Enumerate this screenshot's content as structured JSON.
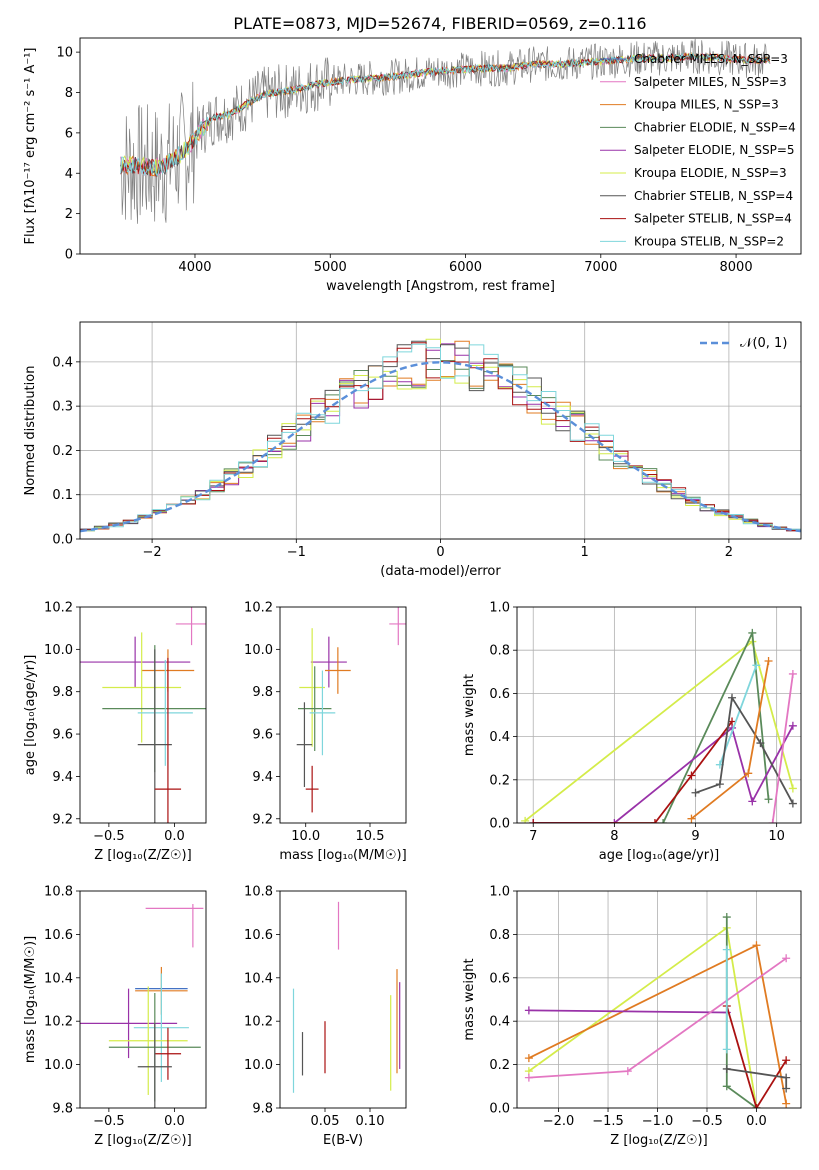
{
  "title": "PLATE=0873, MJD=52674, FIBERID=0569, z=0.116",
  "colors": {
    "chabrier_miles": "#4472c4",
    "salpeter_miles": "#e377c2",
    "kroupa_miles": "#e07b22",
    "chabrier_elodie": "#5a8a5a",
    "salpeter_elodie": "#9932a8",
    "kroupa_elodie": "#d4ec4a",
    "chabrier_stelib": "#555555",
    "salpeter_stelib": "#aa1111",
    "kroupa_stelib": "#7fd6dc",
    "data": "#808080",
    "normal": "#5b8fd9",
    "grid": "#b0b0b0"
  },
  "chart_data": [
    {
      "type": "line",
      "panel": "spectrum",
      "xlabel": "wavelength [Angstrom, rest frame]",
      "ylabel": "Flux [fλ10⁻¹⁷ erg cm⁻² s⁻¹ A⁻¹]",
      "xlim": [
        3150,
        8480
      ],
      "ylim": [
        0,
        10.7
      ],
      "xticks": [
        4000,
        5000,
        6000,
        7000,
        8000
      ],
      "yticks": [
        0,
        2,
        4,
        6,
        8,
        10
      ],
      "grid": false,
      "legend_position": "upper-right",
      "legend": [
        "Chabrier MILES, N_SSP=3",
        "Salpeter MILES, N_SSP=3",
        "Kroupa MILES, N_SSP=3",
        "Chabrier ELODIE, N_SSP=4",
        "Salpeter ELODIE, N_SSP=5",
        "Kroupa ELODIE, N_SSP=3",
        "Chabrier STELIB, N_SSP=4",
        "Salpeter STELIB, N_SSP=4",
        "Kroupa STELIB, N_SSP=2"
      ],
      "continuum": {
        "x": [
          3450,
          3550,
          3650,
          3750,
          3850,
          3950,
          4050,
          4150,
          4250,
          4350,
          4500,
          4700,
          4900,
          5100,
          5300,
          5500,
          5700,
          5900,
          6100,
          6300,
          6500,
          6700,
          6900,
          7100,
          7300,
          7500,
          7700,
          7900,
          8100,
          8250
        ],
        "y": [
          4.4,
          4.4,
          4.3,
          4.3,
          4.7,
          5.3,
          6.2,
          6.8,
          6.9,
          7.3,
          7.9,
          8.1,
          8.4,
          8.6,
          8.7,
          8.8,
          9.0,
          9.1,
          9.2,
          9.2,
          9.4,
          9.4,
          9.5,
          9.6,
          9.7,
          9.7,
          9.8,
          9.7,
          9.6,
          9.6
        ]
      }
    },
    {
      "type": "bar",
      "panel": "residual-histogram",
      "xlabel": "(data-model)/error",
      "ylabel": "Normed distribution",
      "xlim": [
        -2.5,
        2.5
      ],
      "ylim": [
        0,
        0.49
      ],
      "xticks": [
        -2,
        -1,
        0,
        1,
        2
      ],
      "yticks": [
        0.0,
        0.1,
        0.2,
        0.3,
        0.4
      ],
      "grid": true,
      "legend_position": "upper-right",
      "legend": [
        "𝒩(0, 1)"
      ],
      "bin_width": 0.1
    },
    {
      "type": "scatter",
      "panel": "age-vs-Z",
      "xlabel": "Z [log₁₀(Z/Z☉)]",
      "ylabel": "age  [log₁₀(age/yr)]",
      "xlim": [
        -0.72,
        0.24
      ],
      "ylim": [
        9.18,
        10.2
      ],
      "xticks": [
        -0.5,
        0.0
      ],
      "yticks": [
        9.2,
        9.4,
        9.6,
        9.8,
        10.0,
        10.2
      ],
      "points": [
        {
          "series": "salpeter_miles",
          "x": 0.13,
          "xerr": 0.12,
          "y": 10.12,
          "yerr": 0.1
        },
        {
          "series": "salpeter_elodie",
          "x": -0.3,
          "xerr": 0.42,
          "y": 9.94,
          "yerr": 0.12
        },
        {
          "series": "kroupa_miles",
          "x": -0.05,
          "xerr": 0.2,
          "y": 9.9,
          "yerr": 0.1
        },
        {
          "series": "kroupa_elodie",
          "x": -0.25,
          "xerr": 0.3,
          "y": 9.82,
          "yerr": 0.26
        },
        {
          "series": "chabrier_elodie",
          "x": -0.15,
          "xerr": 0.4,
          "y": 9.72,
          "yerr": 0.3
        },
        {
          "series": "kroupa_stelib",
          "x": -0.07,
          "xerr": 0.21,
          "y": 9.7,
          "yerr": 0.25
        },
        {
          "series": "chabrier_stelib",
          "x": -0.15,
          "xerr": 0.13,
          "y": 9.55,
          "yerr": 0.45
        },
        {
          "series": "salpeter_stelib",
          "x": -0.05,
          "xerr": 0.1,
          "y": 9.34,
          "yerr": 0.62
        }
      ]
    },
    {
      "type": "scatter",
      "panel": "age-vs-mass",
      "xlabel": "mass [log₁₀(M/M☉)]",
      "ylabel": "",
      "xlim": [
        9.8,
        10.78
      ],
      "ylim": [
        9.18,
        10.2
      ],
      "xticks": [
        10.0,
        10.5
      ],
      "yticks": [
        9.2,
        9.4,
        9.6,
        9.8,
        10.0,
        10.2
      ],
      "points": [
        {
          "series": "salpeter_miles",
          "x": 10.72,
          "xerr": 0.07,
          "y": 10.12,
          "yerr": 0.1
        },
        {
          "series": "salpeter_elodie",
          "x": 10.18,
          "xerr": 0.14,
          "y": 9.94,
          "yerr": 0.12
        },
        {
          "series": "kroupa_miles",
          "x": 10.25,
          "xerr": 0.1,
          "y": 9.9,
          "yerr": 0.11
        },
        {
          "series": "kroupa_elodie",
          "x": 10.05,
          "xerr": 0.1,
          "y": 9.82,
          "yerr": 0.28
        },
        {
          "series": "chabrier_elodie",
          "x": 10.07,
          "xerr": 0.13,
          "y": 9.72,
          "yerr": 0.2
        },
        {
          "series": "kroupa_stelib",
          "x": 10.13,
          "xerr": 0.1,
          "y": 9.7,
          "yerr": 0.2
        },
        {
          "series": "chabrier_stelib",
          "x": 9.99,
          "xerr": 0.06,
          "y": 9.55,
          "yerr": 0.2
        },
        {
          "series": "salpeter_stelib",
          "x": 10.05,
          "xerr": 0.05,
          "y": 9.34,
          "yerr": 0.11
        }
      ]
    },
    {
      "type": "line",
      "panel": "mass-weight-vs-age",
      "xlabel": "age  [log₁₀(age/yr)]",
      "ylabel": "mass weight",
      "xlim": [
        6.8,
        10.3
      ],
      "ylim": [
        0,
        1
      ],
      "xticks": [
        7,
        8,
        9,
        10
      ],
      "yticks": [
        0.0,
        0.2,
        0.4,
        0.6,
        0.8,
        1.0
      ],
      "grid": true,
      "series": [
        {
          "series": "kroupa_elodie",
          "x": [
            6.9,
            9.7,
            10.2
          ],
          "y": [
            0.01,
            0.84,
            0.16
          ]
        },
        {
          "series": "chabrier_elodie",
          "x": [
            8.6,
            9.7,
            9.9
          ],
          "y": [
            0.0,
            0.88,
            0.11
          ]
        },
        {
          "series": "salpeter_elodie",
          "x": [
            7.0,
            8.0,
            9.45,
            9.7,
            10.2
          ],
          "y": [
            0.0,
            0.0,
            0.44,
            0.1,
            0.45
          ]
        },
        {
          "series": "salpeter_stelib",
          "x": [
            7.0,
            8.5,
            8.95,
            9.45
          ],
          "y": [
            0.0,
            0.0,
            0.22,
            0.47
          ]
        },
        {
          "series": "kroupa_stelib",
          "x": [
            9.3,
            9.75
          ],
          "y": [
            0.27,
            0.73
          ]
        },
        {
          "series": "chabrier_stelib",
          "x": [
            9.0,
            9.3,
            9.45,
            9.8,
            10.2
          ],
          "y": [
            0.14,
            0.18,
            0.58,
            0.37,
            0.09
          ]
        },
        {
          "series": "kroupa_miles",
          "x": [
            8.95,
            9.65,
            9.9
          ],
          "y": [
            0.02,
            0.23,
            0.75
          ]
        },
        {
          "series": "salpeter_miles",
          "x": [
            9.95,
            10.2
          ],
          "y": [
            0.0,
            0.69
          ]
        }
      ]
    },
    {
      "type": "scatter",
      "panel": "mass-vs-Z",
      "xlabel": "Z [log₁₀(Z/Z☉)]",
      "ylabel": "mass [log₁₀(M/M☉)]",
      "xlim": [
        -0.72,
        0.24
      ],
      "ylim": [
        9.8,
        10.8
      ],
      "xticks": [
        -0.5,
        0.0
      ],
      "yticks": [
        9.8,
        10.0,
        10.2,
        10.4,
        10.6,
        10.8
      ],
      "points": [
        {
          "series": "salpeter_miles",
          "x": 0.0,
          "xerr": 0.22,
          "y": 10.72,
          "yerr": 0.0
        },
        {
          "series": "salpeter_miles_v",
          "x": 0.14,
          "xerr": 0.0,
          "y": 10.64,
          "yerr": 0.1
        },
        {
          "series": "chabrier_miles",
          "x": -0.1,
          "xerr": 0.2,
          "y": 10.35,
          "yerr": 0.0
        },
        {
          "series": "kroupa_miles",
          "x": -0.1,
          "xerr": 0.2,
          "y": 10.34,
          "yerr": 0.11
        },
        {
          "series": "salpeter_elodie",
          "x": -0.35,
          "xerr": 0.37,
          "y": 10.19,
          "yerr": 0.16
        },
        {
          "series": "kroupa_stelib",
          "x": -0.1,
          "xerr": 0.21,
          "y": 10.17,
          "yerr": 0.25
        },
        {
          "series": "kroupa_elodie",
          "x": -0.2,
          "xerr": 0.3,
          "y": 10.11,
          "yerr": 0.25
        },
        {
          "series": "chabrier_elodie",
          "x": -0.15,
          "xerr": 0.35,
          "y": 10.08,
          "yerr": 0.25
        },
        {
          "series": "salpeter_stelib",
          "x": -0.05,
          "xerr": 0.1,
          "y": 10.05,
          "yerr": 0.12
        },
        {
          "series": "chabrier_stelib",
          "x": -0.15,
          "xerr": 0.13,
          "y": 9.99,
          "yerr": 0.2
        }
      ]
    },
    {
      "type": "scatter",
      "panel": "mass-vs-ebv",
      "xlabel": "E(B-V)",
      "ylabel": "",
      "xlim": [
        0.0,
        0.14
      ],
      "ylim": [
        9.8,
        10.8
      ],
      "xticks": [
        0.05,
        0.1
      ],
      "yticks": [
        9.8,
        10.0,
        10.2,
        10.4,
        10.6,
        10.8
      ],
      "points": [
        {
          "series": "salpeter_miles",
          "x": 0.065,
          "y": 10.64,
          "yerr": 0.11
        },
        {
          "series": "kroupa_stelib",
          "x": 0.015,
          "y": 10.11,
          "yerr": 0.24
        },
        {
          "series": "chabrier_stelib",
          "x": 0.025,
          "y": 10.05,
          "yerr": 0.1
        },
        {
          "series": "salpeter_stelib",
          "x": 0.05,
          "y": 10.08,
          "yerr": 0.12
        },
        {
          "series": "kroupa_elodie",
          "x": 0.123,
          "y": 10.1,
          "yerr": 0.22
        },
        {
          "series": "kroupa_miles",
          "x": 0.13,
          "y": 10.2,
          "yerr": 0.24
        },
        {
          "series": "salpeter_elodie",
          "x": 0.133,
          "y": 10.18,
          "yerr": 0.2
        }
      ]
    },
    {
      "type": "line",
      "panel": "mass-weight-vs-Z",
      "xlabel": "Z [log₁₀(Z/Z☉)]",
      "ylabel": "mass weight",
      "xlim": [
        -2.42,
        0.45
      ],
      "ylim": [
        0,
        1
      ],
      "xticks": [
        -2.0,
        -1.5,
        -1.0,
        -0.5,
        0.0
      ],
      "yticks": [
        0.0,
        0.2,
        0.4,
        0.6,
        0.8,
        1.0
      ],
      "grid": true,
      "series": [
        {
          "series": "kroupa_elodie",
          "x": [
            -2.3,
            -0.3,
            0.0
          ],
          "y": [
            0.17,
            0.83,
            0.0
          ]
        },
        {
          "series": "kroupa_miles",
          "x": [
            -2.3,
            0.0,
            0.3
          ],
          "y": [
            0.23,
            0.75,
            0.02
          ]
        },
        {
          "series": "salpeter_elodie",
          "x": [
            -2.3,
            -0.3
          ],
          "y": [
            0.45,
            0.44
          ]
        },
        {
          "series": "salpeter_miles",
          "x": [
            -2.3,
            -1.3,
            0.3
          ],
          "y": [
            0.14,
            0.17,
            0.69
          ]
        },
        {
          "series": "chabrier_elodie",
          "x": [
            -0.3,
            -0.3,
            0.0
          ],
          "y": [
            0.88,
            0.1,
            0.0
          ]
        },
        {
          "series": "salpeter_stelib",
          "x": [
            -0.3,
            0.0,
            0.3
          ],
          "y": [
            0.47,
            0.0,
            0.22
          ]
        },
        {
          "series": "chabrier_stelib",
          "x": [
            -0.3,
            0.3,
            0.3
          ],
          "y": [
            0.18,
            0.14,
            0.09
          ]
        },
        {
          "series": "kroupa_stelib",
          "x": [
            -0.3,
            -0.3
          ],
          "y": [
            0.73,
            0.27
          ]
        }
      ]
    }
  ]
}
